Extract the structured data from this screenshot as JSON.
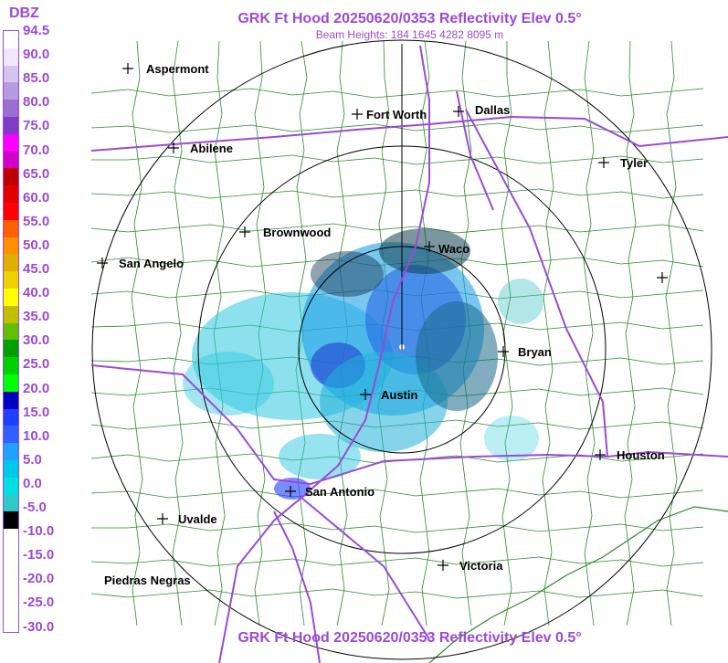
{
  "title_top": "GRK Ft Hood 20250620/0353 Reflectivity Elev 0.5°",
  "subtitle": "Beam Heights: 184 1645 4282 8095 m",
  "title_bottom": "GRK Ft Hood 20250620/0353 Reflectivity Elev 0.5°",
  "legend": {
    "unit": "DBZ",
    "ticks": [
      "94.5",
      "90.0",
      "85.0",
      "80.0",
      "75.0",
      "70.0",
      "65.0",
      "60.0",
      "55.0",
      "50.0",
      "45.0",
      "40.0",
      "35.0",
      "30.0",
      "25.0",
      "20.0",
      "15.0",
      "10.0",
      "5.0",
      "0.0",
      "-5.0",
      "-10.0",
      "-15.0",
      "-20.0",
      "-25.0",
      "-30.0"
    ],
    "colors": [
      "#ffffff",
      "#f0e8ff",
      "#d6c4f0",
      "#b89ae0",
      "#9a6fd0",
      "#7e3cc8",
      "#ff00ff",
      "#d000c8",
      "#c00000",
      "#e00000",
      "#ff0000",
      "#ff6000",
      "#ff9000",
      "#e0b000",
      "#f0d000",
      "#ffff00",
      "#c0c000",
      "#60c000",
      "#00a000",
      "#00d000",
      "#00ff00",
      "#0000c0",
      "#2040ff",
      "#3060ff",
      "#20a0ff",
      "#00c8e8",
      "#00e0e0",
      "#30c8c8",
      "#000000",
      "#ffffff",
      "#ffffff",
      "#ffffff",
      "#ffffff",
      "#ffffff",
      "#ffffff"
    ]
  },
  "cities": [
    {
      "name": "Aspermont",
      "label": "Aspermont"
    },
    {
      "name": "Abilene",
      "label": "Abilene"
    },
    {
      "name": "Fort Worth",
      "label": "Fort Worth"
    },
    {
      "name": "Dallas",
      "label": "Dallas"
    },
    {
      "name": "Tyler",
      "label": "Tyler"
    },
    {
      "name": "Brownwood",
      "label": "Brownwood"
    },
    {
      "name": "Waco",
      "label": "Waco"
    },
    {
      "name": "San Angelo",
      "label": "San Angelo"
    },
    {
      "name": "Bryan",
      "label": "Bryan"
    },
    {
      "name": "Austin",
      "label": "Austin"
    },
    {
      "name": "Houston",
      "label": "Houston"
    },
    {
      "name": "San Antonio",
      "label": "San Antonio"
    },
    {
      "name": "Uvalde",
      "label": "Uvalde"
    },
    {
      "name": "Victoria",
      "label": "Victoria"
    },
    {
      "name": "Piedras Negras",
      "label": "Piedras Negras"
    },
    {
      "name": "unnamed",
      "label": ""
    }
  ]
}
